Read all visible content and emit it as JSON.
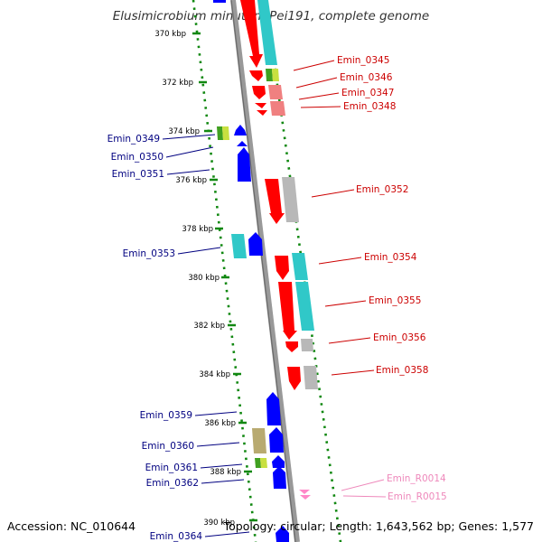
{
  "title": "Elusimicrobium minutum Pei191, complete genome",
  "footer": {
    "accession": "Accession: NC_010644",
    "stats": "Topology: circular; Length: 1,643,562 bp; Genes: 1,577"
  },
  "colors": {
    "forward_cds": "#0000ff",
    "reverse_cds": "#ff0000",
    "rna_gene": "#ff88c8",
    "label_right": "#cc0000",
    "label_left": "#000080",
    "label_rna": "#ee88bb",
    "tick": "#118811",
    "backbone": "#888888",
    "cog_cyan": "#30c8c8",
    "cog_grey": "#b8b8b8",
    "cog_olive": "#b8aa70",
    "cog_salmon": "#f08080",
    "cog_green": "#60b030"
  },
  "scale_labels": [
    "370 kbp",
    "372 kbp",
    "374 kbp",
    "376 kbp",
    "378 kbp",
    "380 kbp",
    "382 kbp",
    "384 kbp",
    "386 kbp",
    "388 kbp",
    "390 kbp"
  ],
  "right_labels": [
    "Emin_0345",
    "Emin_0346",
    "Emin_0347",
    "Emin_0348",
    "Emin_0352",
    "Emin_0354",
    "Emin_0355",
    "Emin_0356",
    "Emin_0358"
  ],
  "left_labels": [
    "Emin_0349",
    "Emin_0350",
    "Emin_0351",
    "Emin_0353",
    "Emin_0359",
    "Emin_0360",
    "Emin_0361",
    "Emin_0362",
    "Emin_0364"
  ],
  "rna_labels": [
    "Emin_R0014",
    "Emin_R0015"
  ]
}
